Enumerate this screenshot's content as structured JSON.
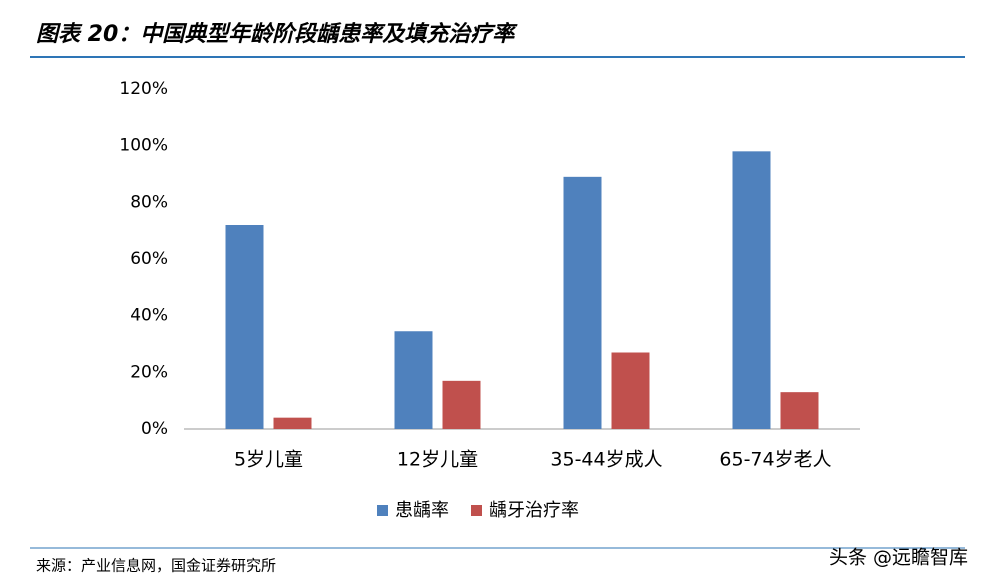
{
  "chart_data": {
    "type": "bar",
    "title": "图表 20：中国典型年龄阶段龋患率及填充治疗率",
    "categories": [
      "5岁儿童",
      "12岁儿童",
      "35-44岁成人",
      "65-74岁老人"
    ],
    "series": [
      {
        "name": "患龋率",
        "color": "#4f81bd",
        "values": [
          72,
          34.5,
          89,
          98
        ]
      },
      {
        "name": "龋牙治疗率",
        "color": "#c0504d",
        "values": [
          4,
          17,
          27,
          13
        ]
      }
    ],
    "ylim": [
      0,
      120
    ],
    "yticks": [
      {
        "value": 0,
        "label": "0%"
      },
      {
        "value": 20,
        "label": "20%"
      },
      {
        "value": 40,
        "label": "40%"
      },
      {
        "value": 60,
        "label": "60%"
      },
      {
        "value": 80,
        "label": "80%"
      },
      {
        "value": 100,
        "label": "100%"
      },
      {
        "value": 120,
        "label": "120%"
      }
    ],
    "grid": false,
    "legend": "bottom",
    "source": "来源：产业信息网，国金证券研究所",
    "watermark": "头条 @远瞻智库"
  }
}
